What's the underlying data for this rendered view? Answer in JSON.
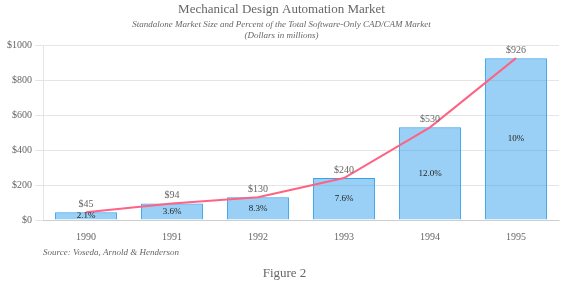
{
  "chart_data": {
    "type": "bar",
    "title": "Mechanical Design Automation Market",
    "subtitle": [
      "Standalone Market Size and Percent of the Total Software-Only CAD/CAM Market",
      "(Dollars in millions)"
    ],
    "annotations": [
      "Source: Voseda, Arnold & Henderson",
      "Figure 2"
    ],
    "categories": [
      "1990",
      "1991",
      "1992",
      "1993",
      "1994",
      "1995"
    ],
    "series": [
      {
        "type": "bar",
        "values": [
          45,
          94,
          130,
          240,
          530,
          926
        ],
        "value_labels": [
          "$45",
          "$94",
          "$130",
          "$240",
          "$530",
          "$926"
        ],
        "percent_labels": [
          "2.1%",
          "3.6%",
          "8.3%",
          "7.6%",
          "12.0%",
          "10%"
        ]
      },
      {
        "type": "line",
        "values": [
          45,
          94,
          130,
          240,
          530,
          926
        ]
      }
    ],
    "ylim": [
      0,
      1000
    ],
    "yticks": [
      {
        "value": 0,
        "label": "$0"
      },
      {
        "value": 200,
        "label": "$200"
      },
      {
        "value": 400,
        "label": "$400"
      },
      {
        "value": 600,
        "label": "$600"
      },
      {
        "value": 800,
        "label": "$800"
      },
      {
        "value": 1000,
        "label": "$1000"
      }
    ],
    "grid": true,
    "data_labels": true
  }
}
